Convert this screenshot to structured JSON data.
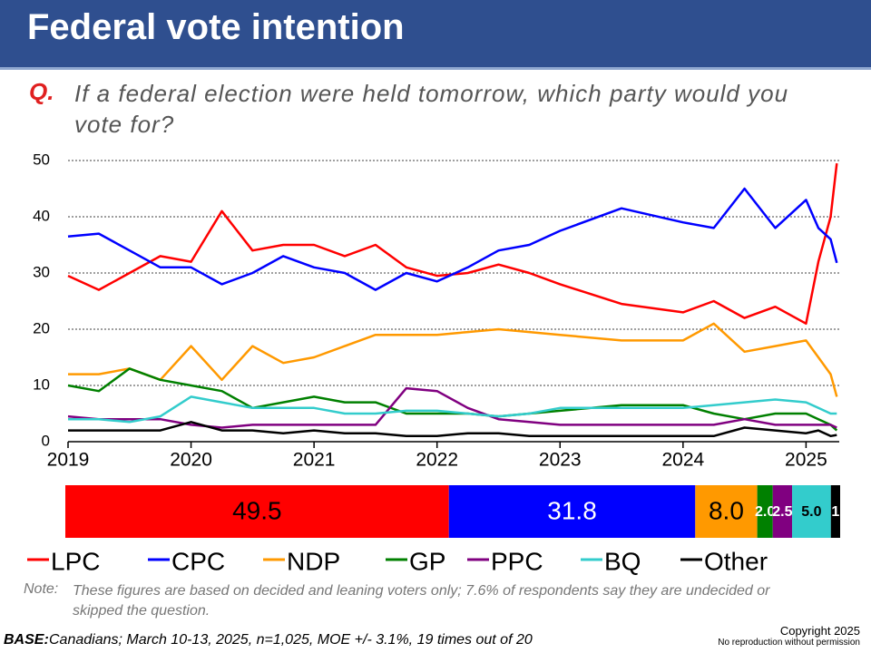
{
  "header": {
    "title": "Federal vote intention",
    "question_label": "Q.",
    "question": "If a federal election were held tomorrow, which party would you vote for?"
  },
  "chart_data": [
    {
      "type": "line",
      "x": [
        2019.0,
        2019.25,
        2019.5,
        2019.75,
        2020.0,
        2020.25,
        2020.5,
        2020.75,
        2021.0,
        2021.25,
        2021.5,
        2021.75,
        2022.0,
        2022.25,
        2022.5,
        2022.75,
        2023.0,
        2023.5,
        2024.0,
        2024.25,
        2024.5,
        2024.75,
        2025.0,
        2025.1,
        2025.2,
        2025.25
      ],
      "xlim": [
        2019,
        2025.27
      ],
      "xticks": [
        2019,
        2020,
        2021,
        2022,
        2023,
        2024,
        2025
      ],
      "ylim": [
        0,
        50
      ],
      "yticks": [
        0,
        10,
        20,
        30,
        40,
        50
      ],
      "grid": true,
      "series": [
        {
          "name": "LPC",
          "color": "#ff0000",
          "values": [
            29.5,
            27,
            30,
            33,
            32,
            41,
            34,
            35,
            35,
            33,
            35,
            31,
            29.5,
            30,
            31.5,
            30,
            28,
            24.5,
            23,
            25,
            22,
            24,
            21,
            32,
            40,
            49.5
          ]
        },
        {
          "name": "CPC",
          "color": "#0000ff",
          "values": [
            36.5,
            37,
            34,
            31,
            31,
            28,
            30,
            33,
            31,
            30,
            27,
            30,
            28.5,
            31,
            34,
            35,
            37.5,
            41.5,
            39,
            38,
            45,
            38,
            43,
            38,
            36,
            31.8
          ]
        },
        {
          "name": "NDP",
          "color": "#ff9900",
          "values": [
            12,
            12,
            13,
            11,
            17,
            11,
            17,
            14,
            15,
            17,
            19,
            19,
            19,
            19.5,
            20,
            19.5,
            19,
            18,
            18,
            21,
            16,
            17,
            18,
            15,
            12,
            8
          ]
        },
        {
          "name": "GP",
          "color": "#008000",
          "values": [
            10,
            9,
            13,
            11,
            10,
            9,
            6,
            7,
            8,
            7,
            7,
            5,
            5,
            5,
            4.5,
            5,
            5.5,
            6.5,
            6.5,
            5,
            4,
            5,
            5,
            4,
            3,
            2
          ]
        },
        {
          "name": "PPC",
          "color": "#800080",
          "values": [
            4.5,
            4,
            4,
            4,
            3,
            2.5,
            3,
            3,
            3,
            3,
            3,
            9.5,
            9,
            6,
            4,
            3.5,
            3,
            3,
            3,
            3,
            4,
            3,
            3,
            3,
            3,
            2.5
          ]
        },
        {
          "name": "BQ",
          "color": "#33cccc",
          "values": [
            4,
            4,
            3.5,
            4.5,
            8,
            7,
            6,
            6,
            6,
            5,
            5,
            5.5,
            5.5,
            5,
            4.5,
            5,
            6,
            6,
            6,
            6.5,
            7,
            7.5,
            7,
            6,
            5,
            5
          ]
        },
        {
          "name": "Other",
          "color": "#000000",
          "values": [
            2,
            2,
            2,
            2,
            3.5,
            2,
            2,
            1.5,
            2,
            1.5,
            1.5,
            1,
            1,
            1.5,
            1.5,
            1,
            1,
            1,
            1,
            1,
            2.5,
            2,
            1.5,
            2,
            1,
            1.2
          ]
        }
      ]
    },
    {
      "type": "stacked-bar",
      "orientation": "horizontal",
      "xlim": [
        0,
        100
      ],
      "values": [
        49.5,
        31.8,
        8.0,
        2.0,
        2.5,
        5.0,
        1.2
      ],
      "value_labels": [
        "49.5",
        "31.8",
        "8.0",
        "2.0",
        "2.5",
        "5.0",
        "1"
      ],
      "colors": [
        "#ff0000",
        "#0000ff",
        "#ff9900",
        "#008000",
        "#800080",
        "#33cccc",
        "#000000"
      ],
      "label_colors": [
        "#000000",
        "#ffffff",
        "#000000",
        "#ffffff",
        "#ffffff",
        "#000000",
        "#ffffff"
      ]
    }
  ],
  "footer": {
    "note_label": "Note:",
    "note": "These figures are based on decided and leaning voters only; 7.6% of respondents say they are undecided or skipped the question.",
    "base_label": "BASE:",
    "base": "Canadians; March 10-13, 2025, n=1,025, MOE +/- 3.1%, 19 times out of 20",
    "copyright": "Copyright 2025",
    "rights": "No reproduction without permission"
  }
}
